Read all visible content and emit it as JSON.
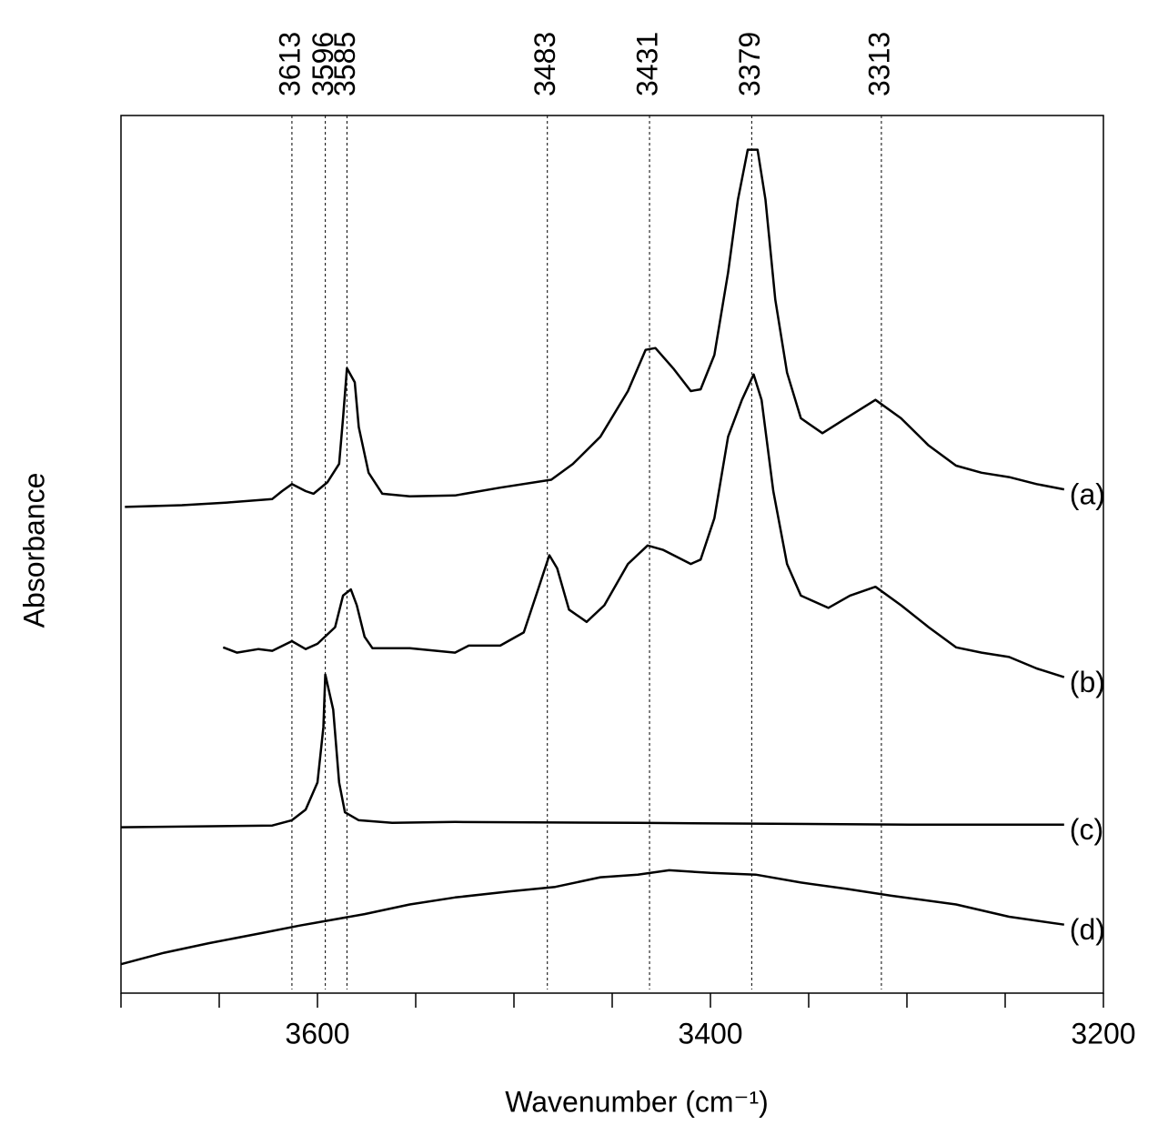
{
  "chart_data": {
    "type": "line",
    "xlabel": "Wavenumber (cm⁻¹)",
    "ylabel": "Absorbance",
    "xlim": [
      3700,
      3200
    ],
    "ylim": [
      0,
      100
    ],
    "xticks": [
      3600,
      3400,
      3200
    ],
    "minor_xticks": [
      3700,
      3650,
      3550,
      3500,
      3450,
      3350,
      3300,
      3250
    ],
    "peaks": [
      3613,
      3596,
      3585,
      3483,
      3431,
      3379,
      3313
    ],
    "series": [
      {
        "name": "(a)",
        "color": "#000000",
        "x": [
          3698,
          3669,
          3646,
          3623,
          3618,
          3613,
          3606,
          3602,
          3595,
          3589,
          3587,
          3585,
          3581,
          3579,
          3574,
          3567,
          3553,
          3530,
          3507,
          3481,
          3470,
          3456,
          3442,
          3433,
          3428,
          3419,
          3410,
          3405,
          3398,
          3391,
          3386,
          3381,
          3376,
          3372,
          3367,
          3361,
          3354,
          3343,
          3331,
          3316,
          3303,
          3289,
          3275,
          3262,
          3248,
          3234,
          3220
        ],
        "values": [
          55.4,
          55.6,
          55.9,
          56.3,
          57.2,
          58.0,
          57.2,
          56.9,
          58.2,
          60.3,
          65.5,
          71.2,
          69.6,
          64.5,
          59.3,
          56.9,
          56.6,
          56.7,
          57.6,
          58.5,
          60.3,
          63.4,
          68.6,
          73.3,
          73.5,
          71.2,
          68.6,
          68.8,
          72.7,
          82.1,
          90.4,
          96.1,
          96.1,
          90.4,
          79.0,
          70.7,
          65.5,
          63.8,
          65.5,
          67.6,
          65.5,
          62.4,
          60.1,
          59.3,
          58.8,
          58.0,
          57.4
        ]
      },
      {
        "name": "(b)",
        "color": "#000000",
        "x": [
          3648,
          3641,
          3630,
          3623,
          3613,
          3606,
          3600,
          3591,
          3587,
          3583,
          3580,
          3576,
          3572,
          3553,
          3530,
          3523,
          3507,
          3495,
          3488,
          3482,
          3478,
          3472,
          3463,
          3454,
          3442,
          3432,
          3424,
          3410,
          3405,
          3398,
          3391,
          3384,
          3378,
          3374,
          3368,
          3361,
          3354,
          3340,
          3329,
          3316,
          3303,
          3289,
          3275,
          3262,
          3248,
          3234,
          3220
        ],
        "values": [
          39.4,
          38.8,
          39.2,
          39.0,
          40.1,
          39.2,
          39.8,
          41.7,
          45.3,
          46.0,
          44.2,
          40.6,
          39.3,
          39.3,
          38.8,
          39.6,
          39.6,
          41.1,
          45.8,
          49.9,
          48.4,
          43.7,
          42.3,
          44.2,
          48.9,
          51.0,
          50.5,
          48.9,
          49.4,
          54.1,
          63.4,
          67.6,
          70.5,
          67.6,
          57.2,
          48.9,
          45.3,
          43.9,
          45.3,
          46.3,
          44.2,
          41.7,
          39.4,
          38.8,
          38.3,
          37.0,
          36.0
        ]
      },
      {
        "name": "(c)",
        "color": "#000000",
        "x": [
          3700,
          3623,
          3613,
          3606,
          3600,
          3597,
          3596,
          3592,
          3589,
          3586,
          3579,
          3562,
          3530,
          3437,
          3299,
          3220
        ],
        "values": [
          18.9,
          19.1,
          19.7,
          20.9,
          24.0,
          30.3,
          36.3,
          32.3,
          24.0,
          20.6,
          19.7,
          19.4,
          19.5,
          19.4,
          19.2,
          19.2
        ]
      },
      {
        "name": "(d)",
        "color": "#000000",
        "x": [
          3700,
          3678,
          3655,
          3627,
          3609,
          3576,
          3553,
          3530,
          3502,
          3479,
          3456,
          3437,
          3421,
          3400,
          3377,
          3354,
          3331,
          3308,
          3275,
          3248,
          3220
        ],
        "values": [
          3.3,
          4.6,
          5.7,
          6.9,
          7.7,
          9.0,
          10.1,
          10.9,
          11.6,
          12.1,
          13.2,
          13.5,
          14.0,
          13.7,
          13.5,
          12.6,
          11.9,
          11.1,
          10.1,
          8.7,
          7.8
        ]
      }
    ]
  }
}
